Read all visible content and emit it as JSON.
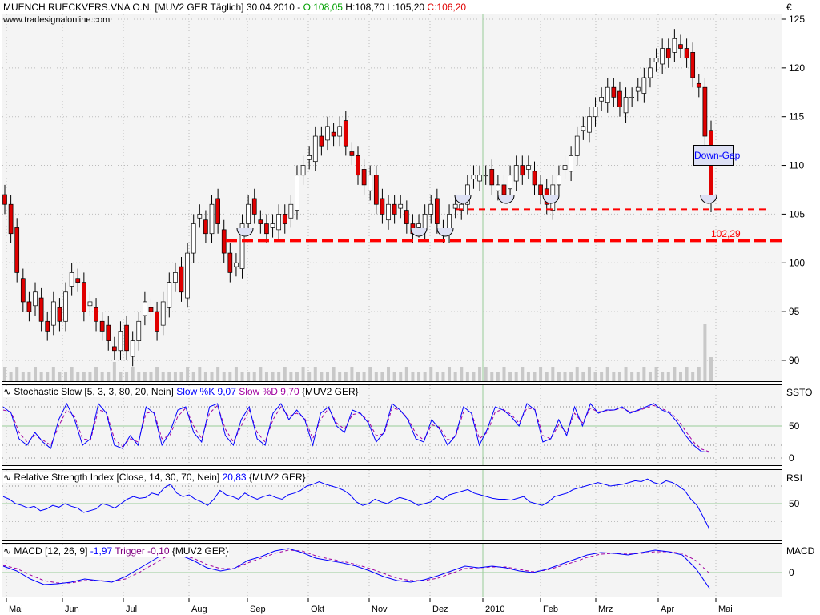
{
  "header": {
    "title": "MUENCH RUECKVERS.VNA O.N. [MUV2 GER  Täglich] 30.04.2010 -",
    "open": "O:108,05",
    "high": "H:108,70",
    "low": "L:105,20",
    "close": "C:106,20",
    "source": "www.tradesignalonline.com",
    "currency": "€"
  },
  "indicators": {
    "stoch": {
      "name": "Stochastic Slow [5, 3, 3, 80, 20, Nein]",
      "k": "Slow %K 9,07",
      "d": "Slow %D 9,70",
      "sym": "{MUV2 GER}",
      "short": "SSTO"
    },
    "rsi": {
      "name": "Relative Strength Index [Close, 14, 30, 70, Nein]",
      "v": "20,83",
      "sym": "{MUV2 GER}",
      "short": "RSI"
    },
    "macd": {
      "name": "MACD [12, 26, 9]",
      "v": "-1,97",
      "t": "Trigger -0,10",
      "sym": "{MUV2 GER}",
      "short": "MACD"
    }
  },
  "colors": {
    "up": "#ffffff",
    "down": "#e00000",
    "k": "#0000ff",
    "d": "#a000a0",
    "support": "#ff0000"
  },
  "chart_data": [
    {
      "type": "candlestick",
      "title": "MUENCH RUECKVERS.VNA O.N.",
      "ylim": [
        88,
        126
      ],
      "yticks": [
        "125",
        "120",
        "115",
        "110",
        "105",
        "100",
        "95",
        "90"
      ],
      "xticks": [
        "Mai",
        "Jun",
        "Jul",
        "Aug",
        "Sep",
        "Okt",
        "Nov",
        "Dez",
        "2010",
        "Feb",
        "Mrz",
        "Apr",
        "Mai"
      ],
      "close": [
        106,
        103,
        99,
        96,
        95,
        97,
        94,
        93,
        96,
        94,
        97,
        99,
        98,
        95,
        96,
        94,
        93,
        92,
        91,
        93,
        91,
        92,
        94,
        96,
        95,
        93,
        96,
        98,
        99,
        97,
        101,
        104,
        105,
        103,
        106,
        104,
        101,
        99,
        100,
        104,
        106,
        105,
        104,
        103,
        104,
        105,
        104,
        106,
        109,
        110,
        111,
        113,
        112,
        114,
        113,
        114,
        112,
        111,
        109,
        108,
        109,
        106,
        105,
        106,
        105,
        106,
        104,
        103,
        104,
        105,
        106,
        104,
        103,
        105,
        106,
        106,
        108,
        109,
        109,
        109,
        108,
        108,
        107,
        109,
        110,
        109,
        110,
        108,
        107,
        106,
        108,
        109,
        110,
        111,
        113,
        114,
        115,
        116,
        117,
        118,
        117,
        116,
        117,
        117,
        118,
        119,
        120,
        121,
        122,
        121,
        123,
        122,
        121,
        119,
        118,
        113,
        106.2
      ],
      "volume": [
        3,
        2,
        3,
        2,
        2,
        3,
        2,
        2,
        3,
        2,
        2,
        3,
        2,
        2,
        2,
        3,
        2,
        2,
        4,
        2,
        2,
        3,
        2,
        2,
        2,
        3,
        2,
        2,
        2,
        2,
        3,
        2,
        3,
        2,
        2,
        3,
        2,
        2,
        3,
        2,
        2,
        2,
        3,
        2,
        2,
        2,
        3,
        2,
        2,
        3,
        2,
        3,
        2,
        2,
        3,
        2,
        2,
        3,
        2,
        2,
        3,
        2,
        2,
        3,
        2,
        2,
        3,
        2,
        2,
        2,
        3,
        2,
        2,
        3,
        2,
        3,
        2,
        2,
        3,
        3,
        2,
        2,
        3,
        2,
        2,
        3,
        2,
        2,
        3,
        2,
        3,
        2,
        2,
        2,
        3,
        2,
        3,
        2,
        2,
        3,
        2,
        2,
        3,
        2,
        2,
        3,
        2,
        3,
        2,
        2,
        3,
        2,
        3,
        2,
        3,
        12,
        5
      ],
      "support_level": {
        "value": 102.29,
        "label": "102,29"
      },
      "secondary_level": 105.5,
      "annotation": "Down-Gap"
    },
    {
      "type": "line",
      "title": "Stochastic Slow",
      "yticks": [
        "50",
        "0"
      ],
      "ylim": [
        0,
        100
      ],
      "k": [
        80,
        70,
        30,
        20,
        40,
        25,
        15,
        60,
        85,
        60,
        20,
        30,
        85,
        70,
        20,
        15,
        35,
        20,
        80,
        70,
        20,
        40,
        75,
        80,
        40,
        25,
        80,
        85,
        35,
        20,
        60,
        80,
        30,
        20,
        70,
        85,
        60,
        75,
        60,
        20,
        70,
        80,
        50,
        40,
        75,
        70,
        55,
        25,
        40,
        85,
        75,
        60,
        30,
        25,
        60,
        45,
        20,
        35,
        80,
        70,
        20,
        45,
        80,
        75,
        65,
        50,
        85,
        75,
        25,
        30,
        60,
        35,
        80,
        50,
        85,
        70,
        75,
        75,
        80,
        70,
        75,
        80,
        85,
        75,
        70,
        55,
        35,
        20,
        10,
        9
      ],
      "d": [
        75,
        72,
        40,
        25,
        35,
        28,
        20,
        50,
        75,
        65,
        30,
        28,
        75,
        72,
        30,
        18,
        30,
        25,
        70,
        72,
        30,
        35,
        65,
        78,
        50,
        30,
        70,
        82,
        45,
        25,
        50,
        75,
        40,
        25,
        60,
        80,
        65,
        70,
        62,
        30,
        60,
        78,
        55,
        45,
        68,
        70,
        58,
        35,
        38,
        78,
        75,
        62,
        38,
        28,
        52,
        48,
        28,
        33,
        72,
        72,
        30,
        40,
        72,
        76,
        68,
        55,
        78,
        76,
        35,
        30,
        52,
        40,
        70,
        55,
        78,
        72,
        74,
        75,
        78,
        72,
        74,
        78,
        82,
        77,
        72,
        60,
        42,
        25,
        14,
        9.7
      ]
    },
    {
      "type": "line",
      "title": "RSI",
      "yticks": [
        "50"
      ],
      "ylim": [
        0,
        100
      ],
      "v": [
        58,
        55,
        50,
        48,
        45,
        47,
        42,
        44,
        48,
        46,
        50,
        47,
        45,
        40,
        42,
        44,
        50,
        48,
        45,
        50,
        55,
        58,
        56,
        57,
        62,
        60,
        68,
        72,
        62,
        58,
        60,
        55,
        52,
        48,
        55,
        65,
        60,
        58,
        55,
        62,
        58,
        55,
        58,
        60,
        57,
        55,
        60,
        62,
        65,
        70,
        72,
        75,
        72,
        70,
        68,
        65,
        60,
        52,
        48,
        50,
        55,
        52,
        50,
        54,
        57,
        55,
        52,
        48,
        50,
        52,
        58,
        55,
        60,
        62,
        64,
        66,
        62,
        60,
        58,
        56,
        55,
        55,
        54,
        56,
        58,
        52,
        50,
        48,
        52,
        58,
        60,
        62,
        66,
        68,
        70,
        72,
        74,
        72,
        70,
        71,
        72,
        74,
        76,
        75,
        78,
        74,
        72,
        76,
        74,
        70,
        65,
        55,
        48,
        35,
        21
      ]
    },
    {
      "type": "line",
      "title": "MACD",
      "yticks": [
        "0"
      ],
      "ylim": [
        -3,
        3.5
      ],
      "macd": [
        0.8,
        0.2,
        -0.8,
        -1.5,
        -1.4,
        -1.2,
        -0.8,
        -1.0,
        -1.2,
        -0.5,
        0.5,
        1.5,
        2.5,
        2.2,
        1.5,
        0.6,
        0.2,
        0.5,
        1.5,
        2.0,
        2.7,
        3.0,
        2.5,
        1.8,
        1.5,
        1.2,
        0.8,
        0.2,
        -0.5,
        -1.0,
        -1.2,
        -0.9,
        -0.4,
        0.2,
        0.8,
        0.6,
        0.8,
        0.6,
        0.2,
        0.0,
        0.4,
        1.0,
        1.6,
        2.2,
        2.5,
        2.4,
        2.2,
        2.5,
        2.8,
        2.6,
        2.2,
        0.5,
        -1.97
      ],
      "trigger": [
        0.9,
        0.5,
        -0.3,
        -1.0,
        -1.3,
        -1.3,
        -1.0,
        -1.0,
        -1.1,
        -0.8,
        0.0,
        1.0,
        2.0,
        2.2,
        1.8,
        1.0,
        0.5,
        0.5,
        1.2,
        1.8,
        2.4,
        2.8,
        2.7,
        2.1,
        1.7,
        1.4,
        1.0,
        0.5,
        -0.1,
        -0.7,
        -1.0,
        -1.0,
        -0.7,
        -0.1,
        0.5,
        0.6,
        0.7,
        0.7,
        0.4,
        0.1,
        0.3,
        0.8,
        1.3,
        1.9,
        2.3,
        2.4,
        2.3,
        2.4,
        2.6,
        2.6,
        2.4,
        1.5,
        -0.1
      ]
    }
  ]
}
